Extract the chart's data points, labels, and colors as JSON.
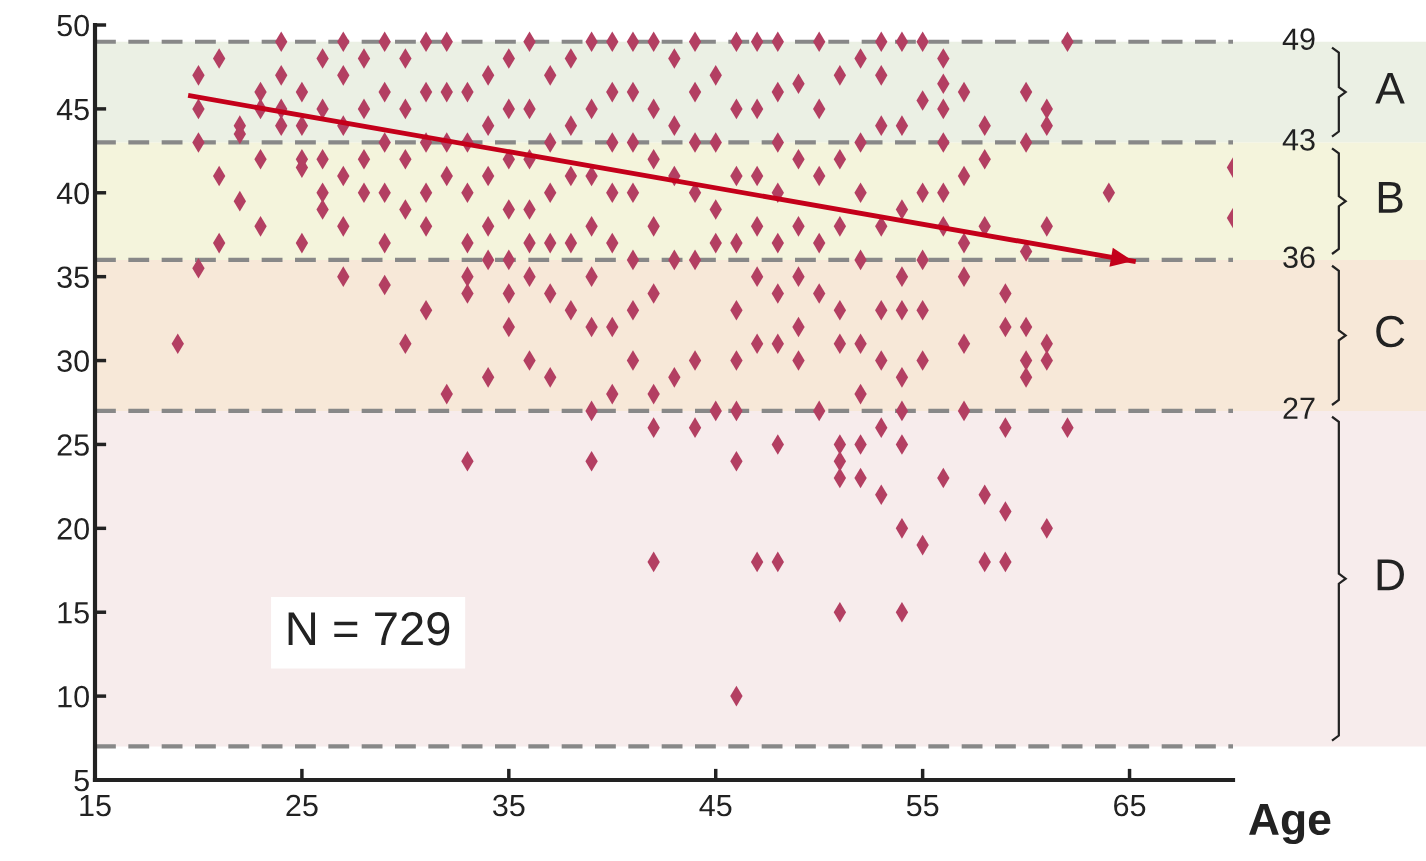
{
  "chart_data": {
    "type": "scatter",
    "xlabel": "Age",
    "xlim": [
      15,
      70
    ],
    "ylim": [
      5,
      50
    ],
    "xticks": [
      15,
      25,
      35,
      45,
      55,
      65
    ],
    "yticks": [
      5,
      10,
      15,
      20,
      25,
      30,
      35,
      40,
      45,
      50
    ],
    "grid": false,
    "legend": false,
    "series": [
      {
        "marker": "diamond",
        "color": "#b33f62",
        "x": [
          19,
          20,
          20,
          20,
          20,
          21,
          21,
          21,
          22,
          22,
          22,
          23,
          23,
          23,
          23,
          24,
          24,
          24,
          24,
          25,
          25,
          25,
          25,
          25,
          26,
          26,
          26,
          26,
          26,
          27,
          27,
          27,
          27,
          27,
          27,
          28,
          28,
          28,
          28,
          29,
          29,
          29,
          29,
          29,
          29,
          30,
          30,
          30,
          30,
          30,
          31,
          31,
          31,
          31,
          31,
          31,
          32,
          32,
          32,
          32,
          32,
          33,
          33,
          33,
          33,
          33,
          33,
          33,
          34,
          34,
          34,
          34,
          34,
          34,
          35,
          35,
          35,
          35,
          35,
          35,
          35,
          36,
          36,
          36,
          36,
          36,
          36,
          36,
          37,
          37,
          37,
          37,
          37,
          37,
          38,
          38,
          38,
          38,
          38,
          39,
          39,
          39,
          39,
          39,
          39,
          39,
          39,
          40,
          40,
          40,
          40,
          40,
          40,
          40,
          41,
          41,
          41,
          41,
          41,
          41,
          41,
          42,
          42,
          42,
          42,
          42,
          42,
          42,
          42,
          43,
          43,
          43,
          43,
          43,
          44,
          44,
          44,
          44,
          44,
          44,
          44,
          45,
          45,
          45,
          45,
          45,
          46,
          46,
          46,
          46,
          46,
          46,
          46,
          46,
          46,
          47,
          47,
          47,
          47,
          47,
          47,
          47,
          48,
          48,
          48,
          48,
          48,
          48,
          48,
          48,
          48,
          49,
          49,
          49,
          49,
          49,
          49,
          50,
          50,
          50,
          50,
          50,
          50,
          51,
          51,
          51,
          51,
          51,
          51,
          51,
          51,
          51,
          52,
          52,
          52,
          52,
          52,
          52,
          52,
          52,
          53,
          53,
          53,
          53,
          53,
          53,
          53,
          53,
          54,
          54,
          54,
          54,
          54,
          54,
          54,
          54,
          54,
          54,
          55,
          55,
          55,
          55,
          55,
          55,
          55,
          56,
          56,
          56,
          56,
          56,
          56,
          56,
          57,
          57,
          57,
          57,
          57,
          57,
          58,
          58,
          58,
          58,
          58,
          59,
          59,
          59,
          59,
          59,
          60,
          60,
          60,
          60,
          60,
          60,
          61,
          61,
          61,
          61,
          61,
          61,
          62,
          62,
          64,
          70,
          70
        ],
        "values": [
          31,
          47,
          45,
          43,
          35.5,
          48,
          41,
          37,
          39.5,
          44,
          43.5,
          42,
          38,
          46,
          45,
          49,
          47,
          45,
          44,
          46,
          44,
          41.5,
          37,
          42,
          48,
          45,
          42,
          40,
          39,
          49,
          47,
          44,
          41,
          38,
          35,
          48,
          45,
          42,
          40,
          49,
          46,
          43,
          40,
          37,
          34.5,
          48,
          45,
          42,
          39,
          31,
          49,
          46,
          43,
          40,
          38,
          33,
          49,
          46,
          43,
          41,
          28,
          46,
          43,
          40,
          37,
          35,
          34,
          24,
          47,
          44,
          41,
          38,
          36,
          29,
          48,
          45,
          42,
          39,
          36,
          34,
          32,
          49,
          45,
          42,
          39,
          37,
          35,
          30,
          47,
          43,
          40,
          37,
          34,
          29,
          48,
          44,
          41,
          37,
          33,
          49,
          45,
          41,
          38,
          35,
          32,
          27,
          24,
          49,
          46,
          43,
          40,
          37,
          32,
          28,
          49,
          46,
          43,
          40,
          36,
          33,
          30,
          49,
          45,
          42,
          38,
          34,
          28,
          26,
          18,
          48,
          44,
          41,
          36,
          29,
          49,
          46,
          43,
          40,
          36,
          30,
          26,
          47,
          43,
          39,
          37,
          27,
          49,
          45,
          41,
          37,
          33,
          30,
          27,
          24,
          10,
          49,
          45,
          41,
          38,
          35,
          31,
          18,
          49,
          46,
          43,
          40,
          37,
          34,
          31,
          25,
          18,
          46.5,
          42,
          38,
          35,
          32,
          30,
          49,
          45,
          41,
          37,
          34,
          27,
          47,
          42,
          38,
          33,
          31,
          25,
          24,
          23,
          15,
          48,
          43,
          40,
          36,
          31,
          28,
          25,
          23,
          49,
          47,
          44,
          38,
          33,
          30,
          26,
          22,
          49,
          44,
          39,
          35,
          29,
          27,
          25,
          20,
          15,
          33,
          49,
          45.5,
          40,
          36,
          33,
          30,
          19,
          48,
          46.5,
          45,
          43,
          40,
          38,
          23,
          46,
          41,
          37,
          35,
          31,
          27,
          44,
          42,
          22,
          18,
          38,
          34,
          32,
          21,
          18,
          26,
          46,
          43,
          36.5,
          32,
          29,
          30,
          45,
          44,
          38,
          31,
          30,
          20,
          49,
          26,
          40,
          41.5,
          38.5
        ]
      },
      {
        "type": "line",
        "marker": "none",
        "color": "#c4001a",
        "x": [
          19.5,
          65.3
        ],
        "values": [
          45.8,
          35.9
        ]
      }
    ],
    "bands": [
      {
        "axis": "y",
        "from": 43,
        "to": 49,
        "label": "A",
        "color": "#ebf0e4"
      },
      {
        "axis": "y",
        "from": 36,
        "to": 43,
        "label": "B",
        "color": "#f4f4dc"
      },
      {
        "axis": "y",
        "from": 27,
        "to": 36,
        "label": "C",
        "color": "#f7e8d8"
      },
      {
        "axis": "y",
        "from": 7,
        "to": 27,
        "label": "D",
        "color": "#f7ecec"
      }
    ],
    "ref_lines": [
      {
        "axis": "y",
        "value": 49,
        "label": "49",
        "color": "#888888",
        "line_style": "dashed"
      },
      {
        "axis": "y",
        "value": 43,
        "label": "43",
        "color": "#888888",
        "line_style": "dashed"
      },
      {
        "axis": "y",
        "value": 36,
        "label": "36",
        "color": "#888888",
        "line_style": "dashed"
      },
      {
        "axis": "y",
        "value": 27,
        "label": "27",
        "color": "#888888",
        "line_style": "dashed"
      },
      {
        "axis": "y",
        "value": 7,
        "label": null,
        "color": "#888888",
        "line_style": "dashed"
      }
    ],
    "annotations": [
      "N = 729"
    ]
  }
}
